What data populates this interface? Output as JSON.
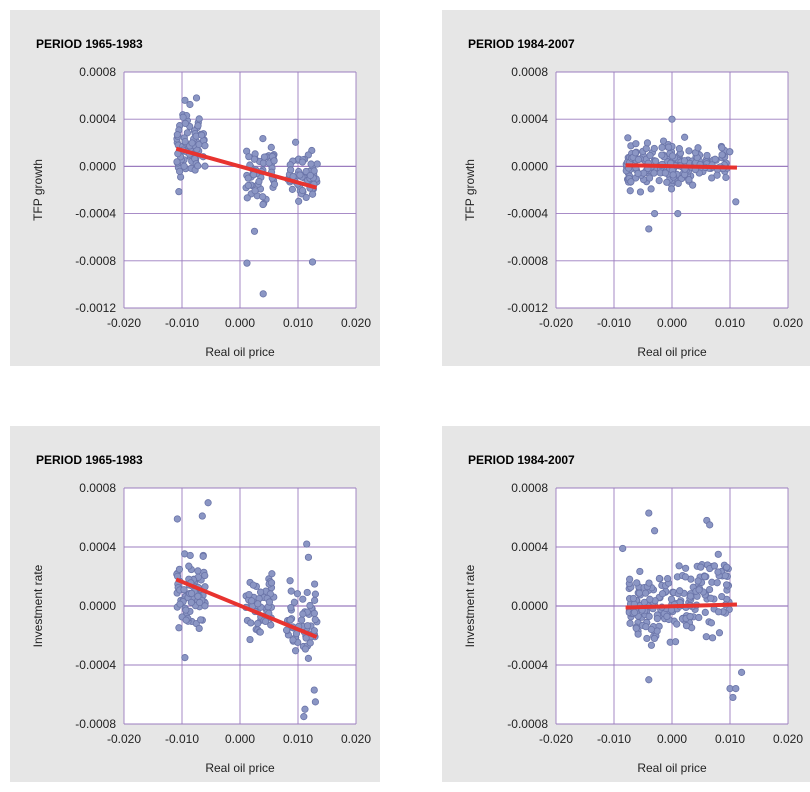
{
  "colors": {
    "panel_background": "#e6e6e6",
    "plot_background": "#ffffff",
    "grid": "#9b7cbf",
    "points_fill": "#8b96c4",
    "points_stroke": "#6a74a8",
    "trend_line": "#e8332f"
  },
  "chart_data": [
    {
      "type": "scatter",
      "title": "PERIOD 1965-1983",
      "xlabel": "Real oil price",
      "ylabel": "TFP growth",
      "xlim": [
        -0.02,
        0.02
      ],
      "ylim": [
        -0.0012,
        0.0008
      ],
      "xticks": [
        "-0.020",
        "-0.010",
        "0.000",
        "0.010",
        "0.020"
      ],
      "yticks": [
        "0.0008",
        "0.0004",
        "0.0000",
        "-0.0004",
        "-0.0008",
        "-0.0012"
      ],
      "grid": true,
      "trend_line": {
        "x": [
          -0.011,
          0.0132
        ],
        "y": [
          0.00015,
          -0.00018
        ]
      },
      "seed": 11,
      "clusters": [
        {
          "n": 80,
          "x": [
            -0.011,
            -0.006
          ],
          "y": [
            -0.00025,
            0.00058
          ]
        },
        {
          "n": 55,
          "x": [
            0.001,
            0.006
          ],
          "y": [
            -0.00045,
            0.0003
          ]
        },
        {
          "n": 60,
          "x": [
            0.008,
            0.0135
          ],
          "y": [
            -0.00045,
            0.00024
          ]
        }
      ],
      "outliers": [
        [
          0.0012,
          -0.00082
        ],
        [
          0.004,
          -0.00108
        ],
        [
          0.0125,
          -0.00081
        ],
        [
          0.0025,
          -0.00055
        ],
        [
          -0.0075,
          0.00058
        ],
        [
          -0.0095,
          0.00056
        ]
      ]
    },
    {
      "type": "scatter",
      "title": "PERIOD 1984-2007",
      "xlabel": "Real oil price",
      "ylabel": "TFP growth",
      "xlim": [
        -0.02,
        0.02
      ],
      "ylim": [
        -0.0012,
        0.0008
      ],
      "xticks": [
        "-0.020",
        "-0.010",
        "0.000",
        "0.010",
        "0.020"
      ],
      "yticks": [
        "0.0008",
        "0.0004",
        "0.0000",
        "-0.0004",
        "-0.0008",
        "-0.0012"
      ],
      "grid": true,
      "trend_line": {
        "x": [
          -0.008,
          0.0112
        ],
        "y": [
          1e-05,
          -1e-05
        ]
      },
      "seed": 23,
      "clusters": [
        {
          "n": 150,
          "x": [
            -0.008,
            0.004
          ],
          "y": [
            -0.00028,
            0.0003
          ]
        },
        {
          "n": 55,
          "x": [
            0.004,
            0.01
          ],
          "y": [
            -0.00015,
            0.0002
          ]
        }
      ],
      "outliers": [
        [
          0.0,
          0.0004
        ],
        [
          -0.004,
          -0.00053
        ],
        [
          0.011,
          -0.0003
        ],
        [
          0.001,
          -0.0004
        ],
        [
          -0.003,
          -0.0004
        ]
      ]
    },
    {
      "type": "scatter",
      "title": "PERIOD 1965-1983",
      "xlabel": "Real oil price",
      "ylabel": "Investment rate",
      "xlim": [
        -0.02,
        0.02
      ],
      "ylim": [
        -0.0008,
        0.0008
      ],
      "xticks": [
        "-0.020",
        "-0.010",
        "0.000",
        "0.010",
        "0.020"
      ],
      "yticks": [
        "0.0008",
        "0.0004",
        "0.0000",
        "-0.0004",
        "-0.0008"
      ],
      "grid": true,
      "trend_line": {
        "x": [
          -0.011,
          0.0132
        ],
        "y": [
          0.00018,
          -0.00021
        ]
      },
      "seed": 37,
      "clusters": [
        {
          "n": 85,
          "x": [
            -0.011,
            -0.006
          ],
          "y": [
            -0.00025,
            0.00045
          ]
        },
        {
          "n": 55,
          "x": [
            0.001,
            0.006
          ],
          "y": [
            -0.00028,
            0.0003
          ]
        },
        {
          "n": 60,
          "x": [
            0.008,
            0.0135
          ],
          "y": [
            -0.00048,
            0.00022
          ]
        }
      ],
      "outliers": [
        [
          -0.0055,
          0.0007
        ],
        [
          -0.0065,
          0.00061
        ],
        [
          -0.0108,
          0.00059
        ],
        [
          -0.0095,
          -0.00035
        ],
        [
          0.0115,
          0.00042
        ],
        [
          0.0118,
          0.00033
        ],
        [
          0.013,
          -0.00065
        ],
        [
          0.0112,
          -0.0007
        ],
        [
          0.011,
          -0.00075
        ],
        [
          0.0128,
          -0.00057
        ]
      ]
    },
    {
      "type": "scatter",
      "title": "PERIOD 1984-2007",
      "xlabel": "Real oil price",
      "ylabel": "Investment rate",
      "xlim": [
        -0.02,
        0.02
      ],
      "ylim": [
        -0.0008,
        0.0008
      ],
      "xticks": [
        "-0.020",
        "-0.010",
        "0.000",
        "0.010",
        "0.020"
      ],
      "yticks": [
        "0.0008",
        "0.0004",
        "0.0000",
        "-0.0004",
        "-0.0008"
      ],
      "grid": true,
      "trend_line": {
        "x": [
          -0.008,
          0.0112
        ],
        "y": [
          -1e-05,
          1e-05
        ]
      },
      "seed": 51,
      "clusters": [
        {
          "n": 140,
          "x": [
            -0.0075,
            0.004
          ],
          "y": [
            -0.00035,
            0.00035
          ]
        },
        {
          "n": 60,
          "x": [
            0.004,
            0.01
          ],
          "y": [
            -0.0003,
            0.00045
          ]
        }
      ],
      "outliers": [
        [
          -0.0085,
          0.00039
        ],
        [
          -0.004,
          0.00063
        ],
        [
          -0.003,
          0.00051
        ],
        [
          0.006,
          0.00058
        ],
        [
          0.0065,
          0.00055
        ],
        [
          0.01,
          -0.00056
        ],
        [
          0.011,
          -0.00056
        ],
        [
          0.0105,
          -0.00062
        ],
        [
          -0.004,
          -0.0005
        ],
        [
          0.012,
          -0.00045
        ]
      ]
    }
  ]
}
